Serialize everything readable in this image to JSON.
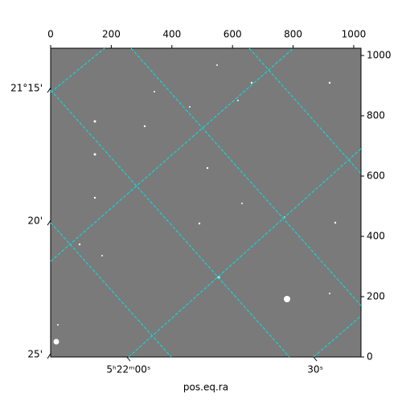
{
  "chart_data": {
    "type": "image",
    "xlabel": "pos.eq.ra",
    "xlim": [
      0,
      1024
    ],
    "ylim": [
      0,
      1024
    ],
    "xticks": [
      0,
      200,
      400,
      600,
      800,
      1000
    ],
    "yticks": [
      0,
      200,
      400,
      600,
      800,
      1000
    ],
    "ra_ticks": [
      {
        "value": 257,
        "label": "5ʰ22ᵐ00ˢ"
      },
      {
        "value": 873,
        "label": "30ˢ"
      }
    ],
    "dec_ticks": [
      {
        "value": 885,
        "label": "21°15'"
      },
      {
        "value": 445,
        "label": "20'"
      },
      {
        "value": 3,
        "label": "25'"
      }
    ],
    "grid": true
  }
}
